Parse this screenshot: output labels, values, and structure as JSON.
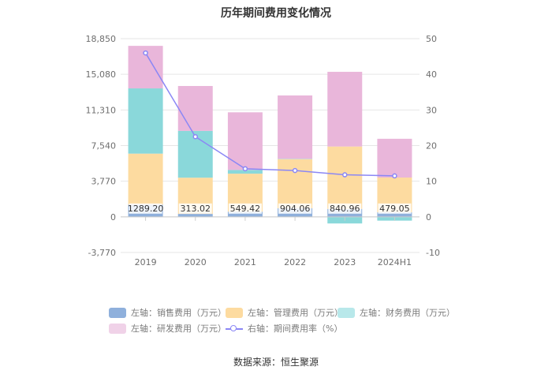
{
  "chart_data": {
    "type": "bar",
    "title": "历年期间费用变化情况",
    "categories": [
      "2019",
      "2020",
      "2021",
      "2022",
      "2023",
      "2024H1"
    ],
    "series": [
      {
        "name": "左轴：销售费用（万元）",
        "axis": "left",
        "color": "#8fb0dc",
        "values": [
          1289.2,
          313.02,
          549.42,
          904.06,
          840.96,
          479.05
        ]
      },
      {
        "name": "左轴：管理费用（万元）",
        "axis": "left",
        "color": "#fddba0",
        "values": [
          5400,
          3830,
          4020,
          5200,
          6600,
          3680
        ]
      },
      {
        "name": "左轴：财务费用（万元）",
        "axis": "left",
        "color": "#8ad8da",
        "values": [
          6900,
          4950,
          390,
          40,
          -700,
          -400
        ]
      },
      {
        "name": "左轴：研发费用（万元）",
        "axis": "left",
        "color": "#e9b6da",
        "values": [
          4500,
          4750,
          6100,
          6700,
          7900,
          4100
        ]
      },
      {
        "name": "右轴：期间费用率（%）",
        "axis": "right",
        "type": "line",
        "color": "#8b87f5",
        "values": [
          46.0,
          22.5,
          13.5,
          13.0,
          11.8,
          11.5
        ]
      }
    ],
    "data_labels": [
      "1289.20",
      "313.02",
      "549.42",
      "904.06",
      "840.96",
      "479.05"
    ],
    "y_left": {
      "min": -3770,
      "max": 18850,
      "ticks": [
        "18,850",
        "15,080",
        "11,310",
        "7,540",
        "3,770",
        "0",
        "-3,770"
      ],
      "tick_values": [
        18850,
        15080,
        11310,
        7540,
        3770,
        0,
        -3770
      ]
    },
    "y_right": {
      "min": -10,
      "max": 50,
      "ticks": [
        "50",
        "40",
        "30",
        "20",
        "10",
        "0",
        "-10"
      ],
      "tick_values": [
        50,
        40,
        30,
        20,
        10,
        0,
        -10
      ]
    },
    "grid": true,
    "legend_position": "bottom"
  },
  "legend": [
    {
      "label": "左轴：销售费用（万元）",
      "color": "#8fb0dc",
      "kind": "box"
    },
    {
      "label": "左轴：管理费用（万元）",
      "color": "#fddba0",
      "kind": "box"
    },
    {
      "label": "左轴：财务费用（万元）",
      "color": "#b8e8ea",
      "kind": "box"
    },
    {
      "label": "左轴：研发费用（万元）",
      "color": "#f0d2e8",
      "kind": "box"
    },
    {
      "label": "右轴：期间费用率（%）",
      "color": "#8b87f5",
      "kind": "line"
    }
  ],
  "source": "数据来源：恒生聚源"
}
